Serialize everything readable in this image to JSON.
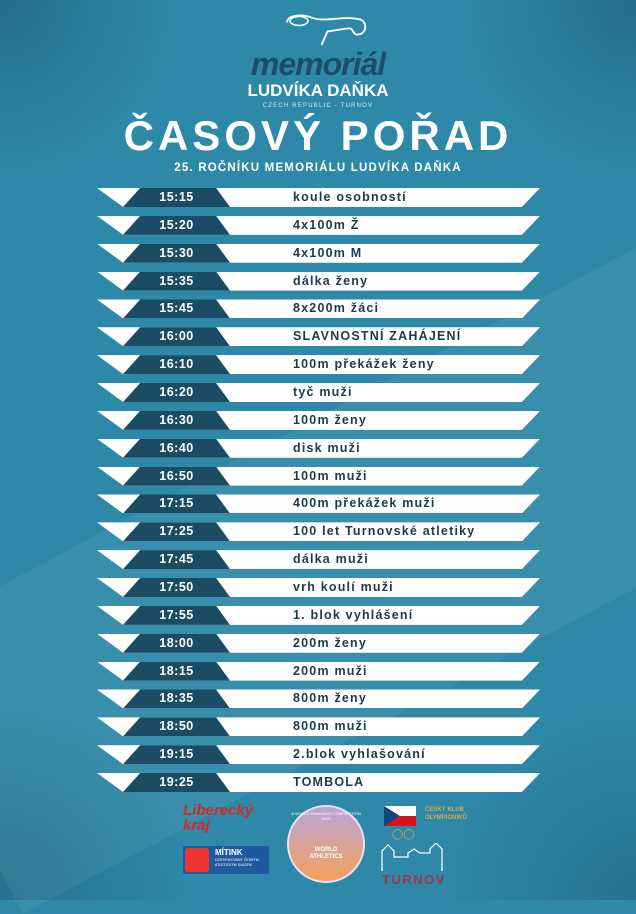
{
  "logo": {
    "word": "memoriál",
    "name": "LUDVÍKA DAŇKA",
    "sub": "CZECH REPUBLIC - TURNOV"
  },
  "title": "ČASOVÝ POŘAD",
  "subtitle": "25. ROČNÍKU MEMORIÁLU LUDVÍKA DAŇKA",
  "schedule": [
    {
      "time": "15:15",
      "event": "koule osobností"
    },
    {
      "time": "15:20",
      "event": "4x100m Ž"
    },
    {
      "time": "15:30",
      "event": "4x100m M"
    },
    {
      "time": "15:35",
      "event": "dálka ženy"
    },
    {
      "time": "15:45",
      "event": "8x200m žáci"
    },
    {
      "time": "16:00",
      "event": "SLAVNOSTNÍ ZAHÁJENÍ"
    },
    {
      "time": "16:10",
      "event": "100m překážek ženy"
    },
    {
      "time": "16:20",
      "event": "tyč muži"
    },
    {
      "time": "16:30",
      "event": "100m ženy"
    },
    {
      "time": "16:40",
      "event": "disk muži"
    },
    {
      "time": "16:50",
      "event": "100m muži"
    },
    {
      "time": "17:15",
      "event": "400m překážek muži"
    },
    {
      "time": "17:25",
      "event": "100 let Turnovské atletiky"
    },
    {
      "time": "17:45",
      "event": "dálka muži"
    },
    {
      "time": "17:50",
      "event": "vrh koulí muži"
    },
    {
      "time": "17:55",
      "event": "1. blok vyhlášení"
    },
    {
      "time": "18:00",
      "event": "200m ženy"
    },
    {
      "time": "18:15",
      "event": "200m muži"
    },
    {
      "time": "18:35",
      "event": "800m ženy"
    },
    {
      "time": "18:50",
      "event": "800m muži"
    },
    {
      "time": "19:15",
      "event": "2.blok vyhlašování"
    },
    {
      "time": "19:25",
      "event": "TOMBOLA"
    }
  ],
  "sponsors": {
    "liberecky": "Liberecký kraj",
    "mitink": "MÍTINK",
    "mitink_sub": "CERTIFIKOVANÝ ČESKÝM ATLETICKÝM SVAZEM",
    "wa_ring": "A WORLD RANKINGS COMPETITION 2025",
    "wa": "WORLD ATHLETICS",
    "cko": "ČESKÝ KLUB OLYMPIONIKŮ",
    "turnov": "TURNOV"
  }
}
